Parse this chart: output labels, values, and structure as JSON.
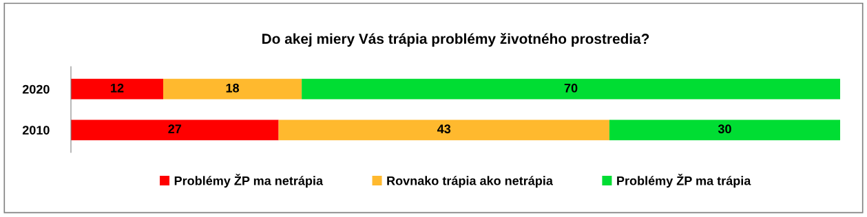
{
  "chart_data": {
    "type": "bar",
    "orientation": "horizontal",
    "stacked": true,
    "title": "Do akej miery Vás trápia problémy životného prostredia?",
    "categories": [
      "2020",
      "2010"
    ],
    "series": [
      {
        "name": "Problémy ŽP ma netrápia",
        "color": "#ff0000",
        "values": [
          12,
          27
        ]
      },
      {
        "name": "Rovnako trápia ako netrápia",
        "color": "#ffb92e",
        "values": [
          18,
          43
        ]
      },
      {
        "name": "Problémy ŽP ma trápia",
        "color": "#00dd33",
        "values": [
          70,
          30
        ]
      }
    ],
    "data_labels": true,
    "legend": "bottom",
    "grid": false,
    "tick_labels": "y"
  }
}
